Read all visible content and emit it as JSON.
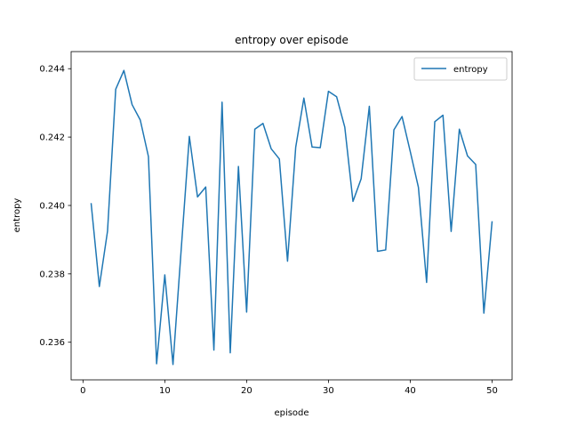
{
  "chart_data": {
    "type": "line",
    "title": "entropy over episode",
    "xlabel": "episode",
    "ylabel": "entropy",
    "xlim": [
      -1.45,
      52.45
    ],
    "ylim": [
      0.2349,
      0.2445
    ],
    "xticks": [
      0,
      10,
      20,
      30,
      40,
      50
    ],
    "yticks": [
      0.236,
      0.238,
      0.24,
      0.242,
      0.244
    ],
    "xtick_labels": [
      "0",
      "10",
      "20",
      "30",
      "40",
      "50"
    ],
    "ytick_labels": [
      "0.236",
      "0.238",
      "0.240",
      "0.242",
      "0.244"
    ],
    "grid": false,
    "legend": {
      "position": "top-right",
      "entries": [
        "entropy"
      ]
    },
    "series": [
      {
        "name": "entropy",
        "color": "#1f77b4",
        "x": [
          1,
          2,
          3,
          4,
          5,
          6,
          7,
          8,
          9,
          10,
          11,
          12,
          13,
          14,
          15,
          16,
          17,
          18,
          19,
          20,
          21,
          22,
          23,
          24,
          25,
          26,
          27,
          28,
          29,
          30,
          31,
          32,
          33,
          34,
          35,
          36,
          37,
          38,
          39,
          40,
          41,
          42,
          43,
          44,
          45,
          46,
          47,
          48,
          49,
          50
        ],
        "y": [
          0.24005,
          0.23763,
          0.23925,
          0.2434,
          0.24395,
          0.24295,
          0.2425,
          0.24143,
          0.23537,
          0.23797,
          0.23535,
          0.2387,
          0.24202,
          0.24025,
          0.24054,
          0.23577,
          0.24302,
          0.23569,
          0.24114,
          0.23688,
          0.24223,
          0.2424,
          0.24166,
          0.24136,
          0.23837,
          0.2417,
          0.24314,
          0.24171,
          0.24169,
          0.24334,
          0.24318,
          0.24229,
          0.24012,
          0.24078,
          0.2429,
          0.23866,
          0.2387,
          0.24221,
          0.2426,
          0.24158,
          0.24053,
          0.23775,
          0.24245,
          0.24264,
          0.23924,
          0.24223,
          0.24145,
          0.2412,
          0.23685,
          0.23952
        ]
      }
    ]
  }
}
